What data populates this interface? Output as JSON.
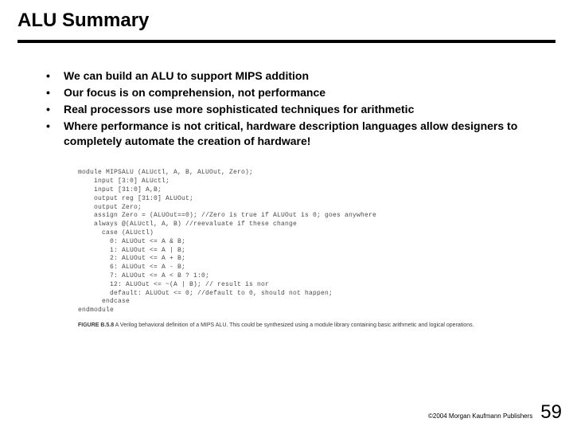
{
  "title": "ALU Summary",
  "bullets": [
    "We can build an ALU to support MIPS addition",
    "Our focus is on comprehension, not performance",
    "Real processors use more sophisticated techniques for arithmetic",
    "Where performance is not critical, hardware description languages allow designers to completely automate the creation of hardware!"
  ],
  "code": {
    "lines": [
      "module MIPSALU (ALUctl, A, B, ALUOut, Zero);",
      "    input [3:0] ALUctl;",
      "    input [31:0] A,B;",
      "    output reg [31:0] ALUOut;",
      "    output Zero;",
      "    assign Zero = (ALUOut==0); //Zero is true if ALUOut is 0; goes anywhere",
      "    always @(ALUctl, A, B) //reevaluate if these change",
      "      case (ALUctl)",
      "        0: ALUOut <= A & B;",
      "        1: ALUOut <= A | B;",
      "        2: ALUOut <= A + B;",
      "        6: ALUOut <= A - B;",
      "        7: ALUOut <= A < B ? 1:0;",
      "        12: ALUOut <= ~(A | B); // result is nor",
      "        default: ALUOut <= 0; //default to 0, should not happen;",
      "      endcase",
      "endmodule"
    ],
    "caption_lead": "FIGURE B.5.8",
    "caption_rest": "   A Verilog behavioral definition of a MIPS ALU. This could be synthesized using a module library containing basic arithmetic and logical operations."
  },
  "footer": {
    "copyright": "©2004 Morgan Kaufmann Publishers",
    "page": "59"
  },
  "colors": {
    "text": "#000000",
    "code_text": "#4a4a4a",
    "background": "#ffffff"
  }
}
